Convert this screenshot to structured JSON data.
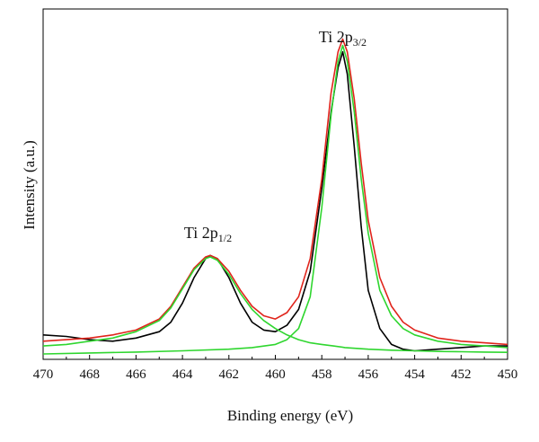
{
  "chart_data": {
    "type": "line",
    "title": "",
    "xlabel": "Binding energy (eV)",
    "ylabel": "Intensity (a.u.)",
    "x_reversed": true,
    "xlim": [
      470,
      450
    ],
    "ylim": [
      0,
      1.0
    ],
    "x_ticks": [
      "470",
      "468",
      "466",
      "464",
      "462",
      "460",
      "458",
      "456",
      "454",
      "452",
      "450"
    ],
    "grid": false,
    "legend": "none",
    "peak_labels": [
      {
        "main": "Ti 2p",
        "sub": "1/2",
        "x": 462.9,
        "y": 0.365
      },
      {
        "main": "Ti 2p",
        "sub": "3/2",
        "x": 457.1,
        "y": 0.98
      }
    ],
    "series": [
      {
        "color": "#000000",
        "x": [
          470,
          469,
          468,
          467,
          466,
          465,
          464.5,
          464,
          463.5,
          463,
          462.8,
          462.5,
          462,
          461.5,
          461,
          460.5,
          460,
          459.5,
          459,
          458.5,
          458,
          457.6,
          457.3,
          457.1,
          456.9,
          456.6,
          456.3,
          456,
          455.5,
          455,
          454.5,
          454,
          453,
          452,
          451,
          450
        ],
        "y": [
          0.06,
          0.055,
          0.045,
          0.04,
          0.05,
          0.07,
          0.1,
          0.16,
          0.24,
          0.3,
          0.31,
          0.3,
          0.24,
          0.16,
          0.1,
          0.075,
          0.07,
          0.09,
          0.14,
          0.26,
          0.52,
          0.76,
          0.9,
          0.95,
          0.88,
          0.65,
          0.4,
          0.2,
          0.08,
          0.03,
          0.015,
          0.01,
          0.015,
          0.02,
          0.025,
          0.025
        ]
      },
      {
        "color": "#e0241b",
        "x": [
          470,
          469,
          468,
          467,
          466,
          465,
          464.5,
          464,
          463.5,
          463,
          462.8,
          462.5,
          462,
          461.5,
          461,
          460.5,
          460,
          459.5,
          459,
          458.5,
          458,
          457.6,
          457.3,
          457.1,
          456.9,
          456.6,
          456.3,
          456,
          455.5,
          455,
          454.5,
          454,
          453,
          452,
          451,
          450
        ],
        "y": [
          0.04,
          0.045,
          0.05,
          0.06,
          0.075,
          0.11,
          0.15,
          0.21,
          0.27,
          0.305,
          0.31,
          0.3,
          0.26,
          0.2,
          0.15,
          0.12,
          0.11,
          0.13,
          0.18,
          0.3,
          0.55,
          0.82,
          0.95,
          0.99,
          0.95,
          0.8,
          0.6,
          0.42,
          0.24,
          0.15,
          0.1,
          0.075,
          0.05,
          0.04,
          0.035,
          0.03
        ]
      },
      {
        "color": "#2fd62f",
        "x": [
          470,
          469,
          468,
          467,
          466,
          465,
          464.5,
          464,
          463.5,
          463,
          462.8,
          462.5,
          462,
          461.5,
          461,
          460.5,
          460,
          459.5,
          459,
          458.5,
          458,
          457.5,
          457,
          456,
          455,
          454,
          453,
          452,
          451,
          450
        ],
        "y": [
          0.025,
          0.03,
          0.04,
          0.05,
          0.07,
          0.105,
          0.145,
          0.205,
          0.265,
          0.3,
          0.305,
          0.295,
          0.25,
          0.19,
          0.14,
          0.105,
          0.08,
          0.06,
          0.045,
          0.035,
          0.03,
          0.025,
          0.02,
          0.015,
          0.012,
          0.01,
          0.008,
          0.007,
          0.006,
          0.005
        ]
      },
      {
        "color": "#2fd62f",
        "x": [
          470,
          468,
          466,
          464,
          462,
          461,
          460,
          459.5,
          459,
          458.5,
          458,
          457.6,
          457.3,
          457.1,
          456.9,
          456.6,
          456.3,
          456,
          455.5,
          455,
          454.5,
          454,
          453,
          452,
          451,
          450
        ],
        "y": [
          0.0,
          0.003,
          0.006,
          0.01,
          0.015,
          0.02,
          0.03,
          0.045,
          0.08,
          0.18,
          0.46,
          0.75,
          0.92,
          0.97,
          0.92,
          0.76,
          0.55,
          0.38,
          0.2,
          0.12,
          0.08,
          0.06,
          0.04,
          0.03,
          0.025,
          0.02
        ]
      }
    ]
  }
}
